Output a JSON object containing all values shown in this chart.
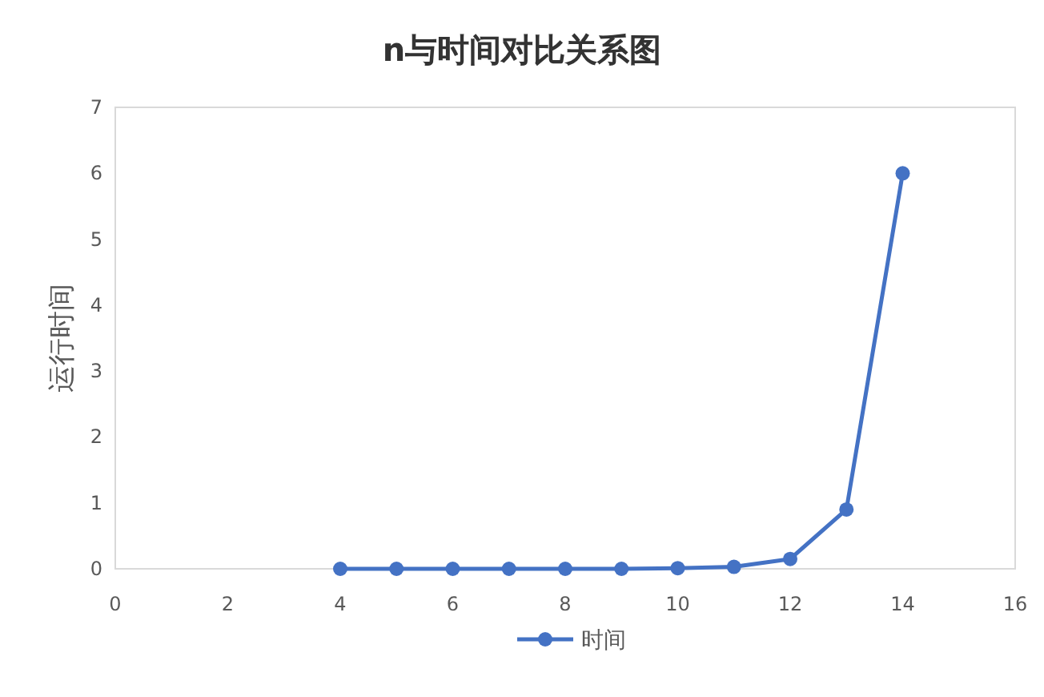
{
  "chart_data": {
    "type": "line",
    "title": "n与时间对比关系图",
    "ylabel": "运行时间",
    "x": [
      4,
      5,
      6,
      7,
      8,
      9,
      10,
      11,
      12,
      13,
      14
    ],
    "series": [
      {
        "name": "时间",
        "color": "#4472c4",
        "values": [
          0,
          0,
          0,
          0,
          0,
          0,
          0.01,
          0.03,
          0.15,
          0.9,
          6.0
        ]
      }
    ],
    "xlim": [
      0,
      16
    ],
    "xticks": [
      0,
      2,
      4,
      6,
      8,
      10,
      12,
      14,
      16
    ],
    "ylim": [
      0,
      7
    ],
    "yticks": [
      0,
      1,
      2,
      3,
      4,
      5,
      6,
      7
    ],
    "grid": false,
    "legend": "bottom",
    "marker": "circle",
    "line_style": "solid"
  }
}
